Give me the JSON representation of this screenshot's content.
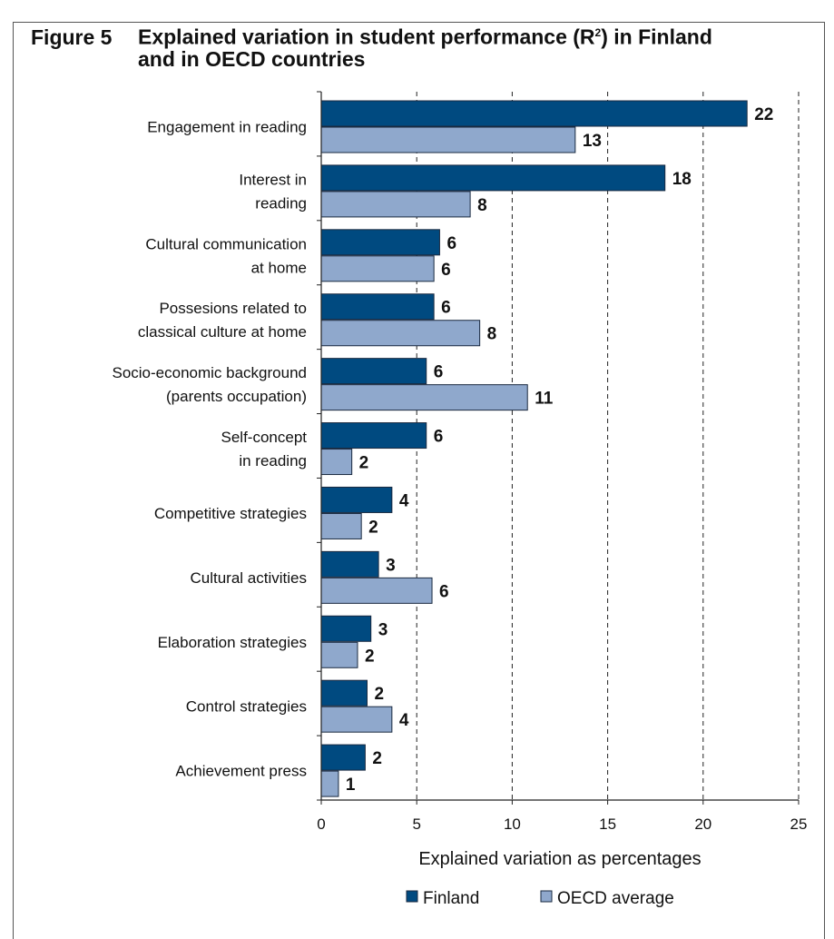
{
  "figure": {
    "number": "Figure 5",
    "title_line1": "Explained variation in student performance (R",
    "title_sup": "2",
    "title_line1_end": ") in Finland",
    "title_line2": "and in OECD countries"
  },
  "colors": {
    "finland": "#004a80",
    "oecd": "#8fa8cc",
    "grid": "#222222"
  },
  "chart_data": {
    "type": "bar",
    "orientation": "horizontal",
    "categories": [
      [
        "Engagement in reading"
      ],
      [
        "Interest in",
        "reading"
      ],
      [
        "Cultural communication",
        "at home"
      ],
      [
        "Possesions related to",
        "classical culture at home"
      ],
      [
        "Socio-economic background",
        "(parents  occupation)"
      ],
      [
        "Self-concept",
        "in reading"
      ],
      [
        "Competitive strategies"
      ],
      [
        "Cultural activities"
      ],
      [
        "Elaboration strategies"
      ],
      [
        "Control strategies"
      ],
      [
        "Achievement press"
      ]
    ],
    "series": [
      {
        "name": "Finland",
        "values": [
          22.3,
          18.0,
          6.2,
          5.9,
          5.5,
          5.5,
          3.7,
          3.0,
          2.6,
          2.4,
          2.3
        ],
        "labels": [
          "22",
          "18",
          "6",
          "6",
          "6",
          "6",
          "4",
          "3",
          "3",
          "2",
          "2"
        ]
      },
      {
        "name": "OECD average",
        "values": [
          13.3,
          7.8,
          5.9,
          8.3,
          10.8,
          1.6,
          2.1,
          5.8,
          1.9,
          3.7,
          0.9
        ],
        "labels": [
          "13",
          "8",
          "6",
          "8",
          "11",
          "2",
          "2",
          "6",
          "2",
          "4",
          "1"
        ]
      }
    ],
    "xlim": [
      0,
      25
    ],
    "xticks": [
      "0",
      "5",
      "10",
      "15",
      "20",
      "25"
    ],
    "xlabel": "Explained variation as percentages",
    "grid": "vertical dashed",
    "legend": "bottom-center"
  }
}
